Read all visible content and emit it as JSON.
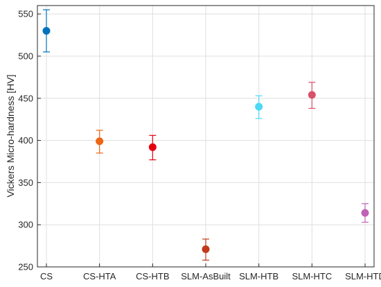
{
  "chart_data": {
    "type": "scatter",
    "title": "",
    "xlabel": "",
    "ylabel": "Vickers Micro-hardness [HV]",
    "ylim": [
      250,
      560
    ],
    "yticks": [
      250,
      300,
      350,
      400,
      450,
      500,
      550
    ],
    "grid": true,
    "legend": "none",
    "categories": [
      "CS",
      "CS-HTA",
      "CS-HTB",
      "SLM-AsBuilt",
      "SLM-HTB",
      "SLM-HTC",
      "SLM-HTD"
    ],
    "values": [
      530,
      399,
      392,
      271,
      440,
      454,
      314
    ],
    "errors": [
      [
        505,
        555
      ],
      [
        385,
        412
      ],
      [
        377,
        406
      ],
      [
        258,
        283
      ],
      [
        426,
        453
      ],
      [
        438,
        469
      ],
      [
        303,
        325
      ]
    ],
    "colors": [
      "#0072BD",
      "#EE6513",
      "#E6000F",
      "#C03A1B",
      "#4DD9F5",
      "#D9526B",
      "#BF62B4"
    ]
  }
}
